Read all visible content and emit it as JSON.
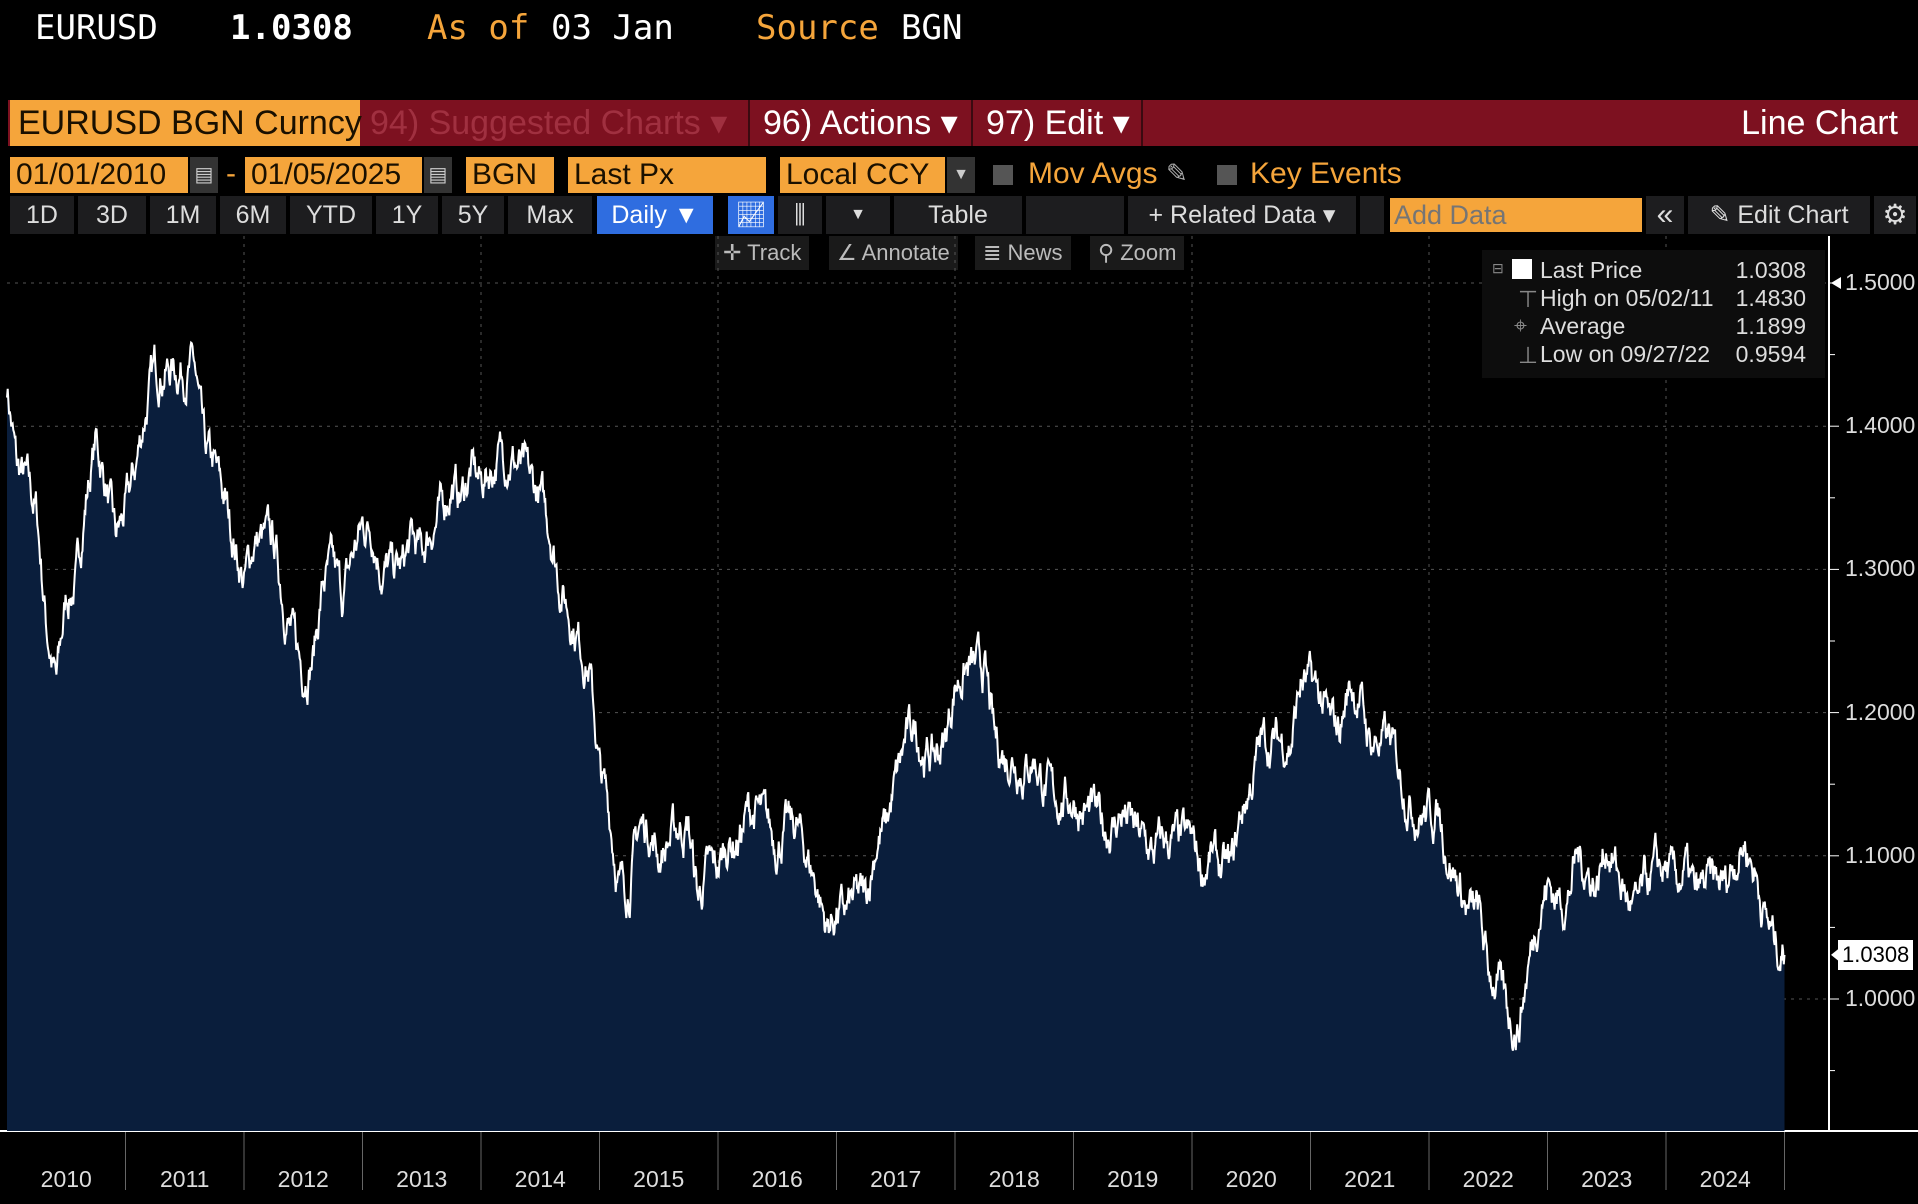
{
  "header": {
    "ticker": "EURUSD",
    "price": "1.0308",
    "as_of_label": "As of",
    "as_of_value": "03 Jan",
    "source_label": "Source",
    "source_value": "BGN"
  },
  "menubar": {
    "security": "EURUSD BGN Curncy",
    "suggested": "94) Suggested Charts ▾",
    "actions": "96) Actions ▾",
    "edit": "97) Edit ▾",
    "chart_type": "Line Chart"
  },
  "controls": {
    "start_date": "01/01/2010",
    "dash": "-",
    "end_date": "01/05/2025",
    "source": "BGN",
    "field": "Last Px",
    "currency": "Local CCY",
    "mov_avgs": "Mov Avgs",
    "key_events": "Key Events"
  },
  "periods": [
    "1D",
    "3D",
    "1M",
    "6M",
    "YTD",
    "1Y",
    "5Y",
    "Max"
  ],
  "toolbar": {
    "frequency": "Daily ▼",
    "table": "Table",
    "related": "+ Related Data ▾",
    "add_data_placeholder": "Add Data",
    "collapse": "«",
    "edit_chart": "Edit Chart"
  },
  "subtools": {
    "track": "Track",
    "annotate": "Annotate",
    "news": "News",
    "zoom": "Zoom"
  },
  "legend": [
    {
      "label": "Last Price",
      "value": "1.0308"
    },
    {
      "label": "High on 05/02/11",
      "value": "1.4830"
    },
    {
      "label": "Average",
      "value": "1.1899"
    },
    {
      "label": "Low on 09/27/22",
      "value": "0.9594"
    }
  ],
  "last_tag": "1.0308",
  "colors": {
    "orange": "#f5a53b",
    "red": "#7d1120",
    "fill": "#0a1e3c",
    "blue": "#2f6de0"
  },
  "chart_data": {
    "type": "area",
    "title": "EURUSD Line Chart",
    "xlabel": "",
    "ylabel": "",
    "ylim": [
      0.91,
      1.54
    ],
    "yticks": [
      "1.5000",
      "1.4000",
      "1.3000",
      "1.2000",
      "1.1000",
      "1.0000"
    ],
    "xticks": [
      "2010",
      "2011",
      "2012",
      "2013",
      "2014",
      "2015",
      "2016",
      "2017",
      "2018",
      "2019",
      "2020",
      "2021",
      "2022",
      "2023",
      "2024"
    ],
    "start_year": 2010,
    "frequency": "monthly (approx.)",
    "values": [
      1.43,
      1.37,
      1.36,
      1.34,
      1.26,
      1.22,
      1.28,
      1.29,
      1.35,
      1.39,
      1.36,
      1.32,
      1.34,
      1.37,
      1.41,
      1.44,
      1.44,
      1.44,
      1.44,
      1.44,
      1.38,
      1.37,
      1.35,
      1.32,
      1.29,
      1.32,
      1.32,
      1.32,
      1.28,
      1.25,
      1.23,
      1.24,
      1.29,
      1.3,
      1.28,
      1.31,
      1.33,
      1.33,
      1.3,
      1.3,
      1.3,
      1.32,
      1.31,
      1.33,
      1.34,
      1.36,
      1.35,
      1.37,
      1.36,
      1.37,
      1.38,
      1.38,
      1.37,
      1.36,
      1.35,
      1.33,
      1.29,
      1.27,
      1.25,
      1.23,
      1.16,
      1.13,
      1.08,
      1.08,
      1.12,
      1.12,
      1.1,
      1.11,
      1.12,
      1.12,
      1.07,
      1.09,
      1.09,
      1.11,
      1.11,
      1.13,
      1.13,
      1.12,
      1.11,
      1.12,
      1.12,
      1.1,
      1.08,
      1.05,
      1.06,
      1.06,
      1.07,
      1.07,
      1.11,
      1.12,
      1.15,
      1.18,
      1.19,
      1.17,
      1.17,
      1.18,
      1.22,
      1.23,
      1.23,
      1.23,
      1.18,
      1.17,
      1.17,
      1.16,
      1.17,
      1.15,
      1.14,
      1.14,
      1.14,
      1.13,
      1.13,
      1.12,
      1.12,
      1.13,
      1.12,
      1.11,
      1.1,
      1.11,
      1.11,
      1.11,
      1.11,
      1.09,
      1.1,
      1.09,
      1.09,
      1.13,
      1.15,
      1.18,
      1.18,
      1.18,
      1.18,
      1.22,
      1.22,
      1.21,
      1.19,
      1.19,
      1.22,
      1.21,
      1.18,
      1.18,
      1.18,
      1.16,
      1.14,
      1.13,
      1.13,
      1.13,
      1.1,
      1.08,
      1.06,
      1.06,
      1.02,
      1.01,
      0.99,
      0.98,
      1.02,
      1.06,
      1.08,
      1.07,
      1.07,
      1.1,
      1.09,
      1.08,
      1.11,
      1.09,
      1.07,
      1.06,
      1.08,
      1.09,
      1.09,
      1.08,
      1.09,
      1.07,
      1.08,
      1.08,
      1.08,
      1.1,
      1.11,
      1.09,
      1.06,
      1.04,
      1.0308
    ]
  }
}
